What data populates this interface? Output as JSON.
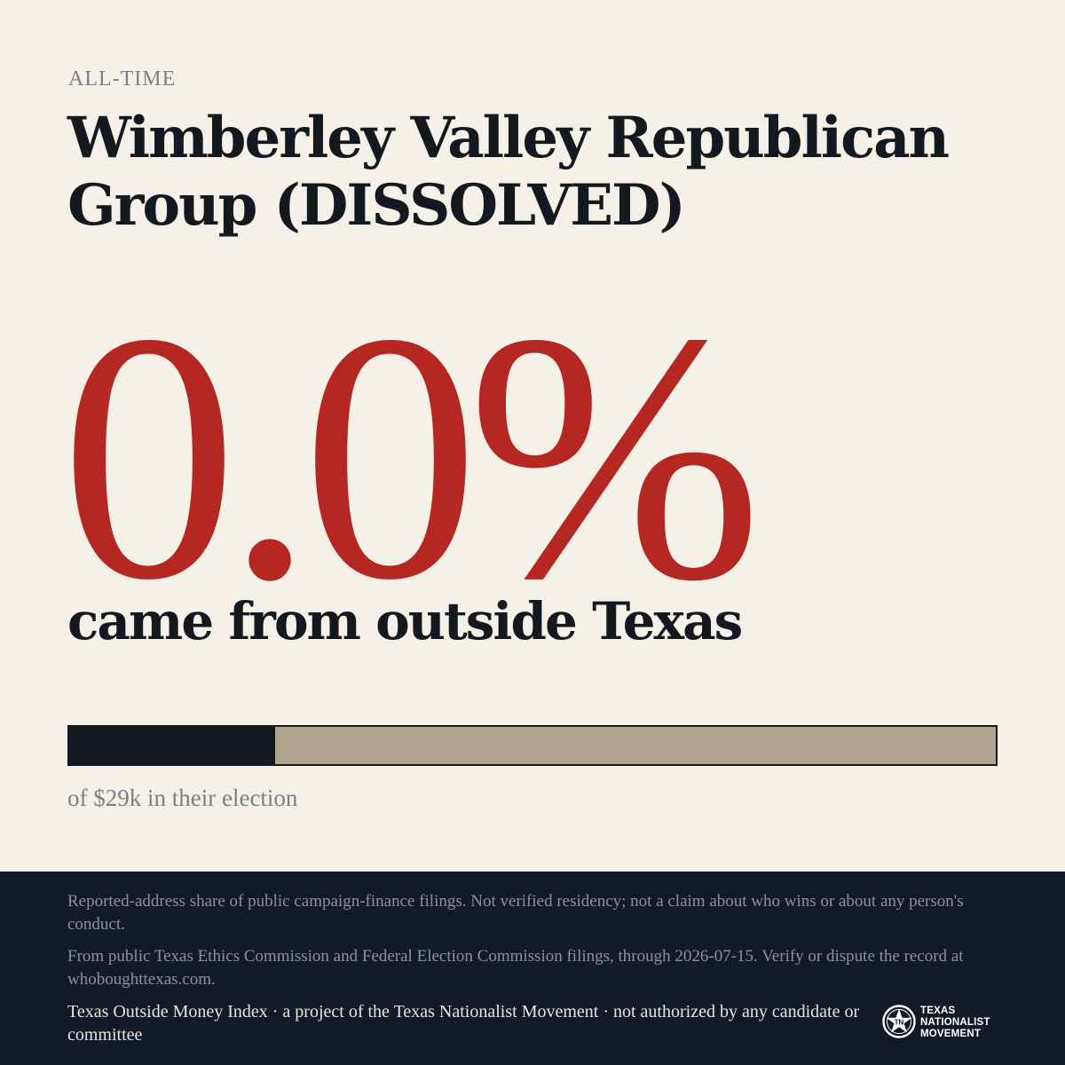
{
  "eyebrow": "ALL-TIME",
  "title": "Wimberley Valley Republican Group (DISSOLVED)",
  "headline_value": "0.0%",
  "headline_caption": "came from outside Texas",
  "progress": {
    "fraction_filled": 0.222,
    "caption": "of $29k in their election"
  },
  "footer": {
    "note_1": "Reported-address share of public campaign-finance filings. Not verified residency; not a claim about who wins or about any person's conduct.",
    "note_2": "From public Texas Ethics Commission and Federal Election Commission filings, through 2026-07-15. Verify or dispute the record at whoboughttexas.com.",
    "credit": "Texas Outside Money Index · a project of the Texas Nationalist Movement · not authorized by any candidate or committee",
    "logo": {
      "icon": "star-seal-icon",
      "line_1": "TEXAS",
      "line_2": "NATIONALIST",
      "line_3": "MOVEMENT"
    }
  },
  "colors": {
    "background": "#f5f0e8",
    "accent_red": "#b52721",
    "ink": "#14181f",
    "bar_track": "#b0a58c",
    "footer_bg": "#121a27"
  }
}
